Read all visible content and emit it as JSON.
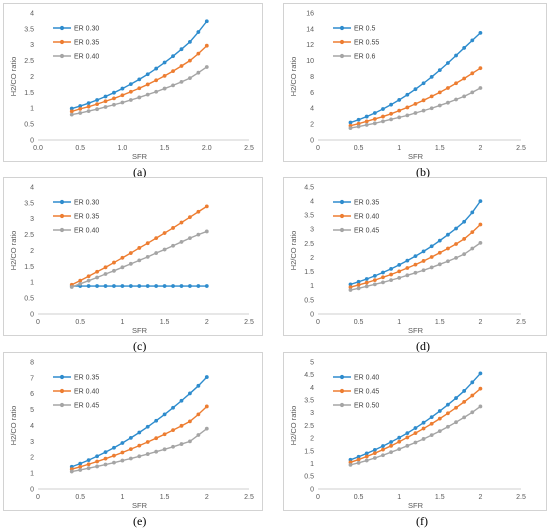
{
  "chart_data": [
    {
      "type": "line",
      "panel_label": "(a)",
      "xlabel": "SFR",
      "ylabel": "H2/CO ratio",
      "xlim": [
        0,
        2.5
      ],
      "ylim": [
        0,
        4
      ],
      "xticks": [
        "0.0",
        "0.5",
        "1.0",
        "1.5",
        "2.0",
        "2.5"
      ],
      "yticks": [
        "0",
        "0.5",
        "1",
        "1.5",
        "2",
        "2.5",
        "3",
        "3.5",
        "4"
      ],
      "legend": "top-left",
      "grid": false,
      "x": [
        0.4,
        0.5,
        0.6,
        0.7,
        0.8,
        0.9,
        1.0,
        1.1,
        1.2,
        1.3,
        1.4,
        1.5,
        1.6,
        1.7,
        1.8,
        1.9,
        2.0
      ],
      "series": [
        {
          "name": "ER 0.30",
          "color": "#2e8ccd",
          "values": [
            0.99,
            1.07,
            1.16,
            1.26,
            1.37,
            1.49,
            1.62,
            1.76,
            1.91,
            2.07,
            2.25,
            2.44,
            2.64,
            2.86,
            3.09,
            3.4,
            3.74
          ]
        },
        {
          "name": "ER 0.35",
          "color": "#ed7d31",
          "values": [
            0.9,
            0.98,
            1.05,
            1.13,
            1.22,
            1.31,
            1.41,
            1.52,
            1.63,
            1.75,
            1.88,
            2.02,
            2.17,
            2.33,
            2.5,
            2.72,
            2.97
          ]
        },
        {
          "name": "ER 0.40",
          "color": "#a5a5a5",
          "values": [
            0.8,
            0.85,
            0.91,
            0.97,
            1.04,
            1.11,
            1.18,
            1.26,
            1.34,
            1.43,
            1.52,
            1.62,
            1.72,
            1.83,
            1.95,
            2.12,
            2.3
          ]
        }
      ]
    },
    {
      "type": "line",
      "panel_label": "(b)",
      "xlabel": "SFR",
      "ylabel": "H2/CO ratio",
      "xlim": [
        0,
        2.5
      ],
      "ylim": [
        0,
        16
      ],
      "xticks": [
        "0",
        "0.5",
        "1",
        "1.5",
        "2",
        "2.5"
      ],
      "yticks": [
        "0",
        "2",
        "4",
        "6",
        "8",
        "10",
        "12",
        "14",
        "16"
      ],
      "legend": "top-left",
      "grid": false,
      "x": [
        0.4,
        0.5,
        0.6,
        0.7,
        0.8,
        0.9,
        1.0,
        1.1,
        1.2,
        1.3,
        1.4,
        1.5,
        1.6,
        1.7,
        1.8,
        1.9,
        2.0
      ],
      "series": [
        {
          "name": "ER 0.5",
          "color": "#2e8ccd",
          "values": [
            2.2,
            2.55,
            2.95,
            3.4,
            3.9,
            4.45,
            5.05,
            5.7,
            6.4,
            7.15,
            7.95,
            8.8,
            9.7,
            10.65,
            11.6,
            12.55,
            13.5
          ]
        },
        {
          "name": "ER 0.55",
          "color": "#ed7d31",
          "values": [
            1.8,
            2.05,
            2.35,
            2.65,
            2.95,
            3.3,
            3.7,
            4.1,
            4.55,
            5.0,
            5.5,
            6.0,
            6.55,
            7.15,
            7.75,
            8.4,
            9.05
          ]
        },
        {
          "name": "ER 0.6",
          "color": "#a5a5a5",
          "values": [
            1.5,
            1.7,
            1.9,
            2.1,
            2.35,
            2.6,
            2.85,
            3.1,
            3.4,
            3.7,
            4.0,
            4.35,
            4.7,
            5.1,
            5.5,
            6.0,
            6.55
          ]
        }
      ]
    },
    {
      "type": "line",
      "panel_label": "(c)",
      "xlabel": "SFR",
      "ylabel": "H2/CO ratio",
      "xlim": [
        0,
        2.5
      ],
      "ylim": [
        0,
        4
      ],
      "xticks": [
        "0",
        "0.5",
        "1",
        "1.5",
        "2",
        "2.5"
      ],
      "yticks": [
        "0",
        "0.5",
        "1",
        "1.5",
        "2",
        "2.5",
        "3",
        "3.5",
        "4"
      ],
      "legend": "top-left",
      "grid": false,
      "x": [
        0.4,
        0.5,
        0.6,
        0.7,
        0.8,
        0.9,
        1.0,
        1.1,
        1.2,
        1.3,
        1.4,
        1.5,
        1.6,
        1.7,
        1.8,
        1.9,
        2.0
      ],
      "series": [
        {
          "name": "ER 0.30",
          "color": "#2e8ccd",
          "values": [
            0.88,
            0.88,
            0.88,
            0.88,
            0.88,
            0.88,
            0.88,
            0.88,
            0.88,
            0.88,
            0.88,
            0.88,
            0.88,
            0.88,
            0.88,
            0.88,
            0.88
          ]
        },
        {
          "name": "ER 0.35",
          "color": "#ed7d31",
          "values": [
            0.92,
            1.05,
            1.19,
            1.33,
            1.47,
            1.62,
            1.77,
            1.92,
            2.08,
            2.23,
            2.39,
            2.55,
            2.71,
            2.88,
            3.05,
            3.22,
            3.39
          ]
        },
        {
          "name": "ER 0.40",
          "color": "#a5a5a5",
          "values": [
            0.85,
            0.95,
            1.05,
            1.15,
            1.26,
            1.36,
            1.47,
            1.58,
            1.69,
            1.8,
            1.92,
            2.03,
            2.15,
            2.27,
            2.39,
            2.5,
            2.6
          ]
        }
      ]
    },
    {
      "type": "line",
      "panel_label": "(d)",
      "xlabel": "SFR",
      "ylabel": "H2/CO ratio",
      "xlim": [
        0,
        2.5
      ],
      "ylim": [
        0,
        4.5
      ],
      "xticks": [
        "0",
        "0.5",
        "1",
        "1.5",
        "2",
        "2.5"
      ],
      "yticks": [
        "0",
        "0.5",
        "1",
        "1.5",
        "2",
        "2.5",
        "3",
        "3.5",
        "4",
        "4.5"
      ],
      "legend": "top-left",
      "grid": false,
      "x": [
        0.4,
        0.5,
        0.6,
        0.7,
        0.8,
        0.9,
        1.0,
        1.1,
        1.2,
        1.3,
        1.4,
        1.5,
        1.6,
        1.7,
        1.8,
        1.9,
        2.0
      ],
      "series": [
        {
          "name": "ER 0.35",
          "color": "#2e8ccd",
          "values": [
            1.05,
            1.14,
            1.24,
            1.35,
            1.47,
            1.6,
            1.74,
            1.89,
            2.05,
            2.22,
            2.4,
            2.6,
            2.81,
            3.03,
            3.27,
            3.6,
            4.0
          ]
        },
        {
          "name": "ER 0.40",
          "color": "#ed7d31",
          "values": [
            0.95,
            1.03,
            1.11,
            1.2,
            1.3,
            1.4,
            1.51,
            1.63,
            1.75,
            1.88,
            2.02,
            2.17,
            2.32,
            2.48,
            2.66,
            2.9,
            3.17
          ]
        },
        {
          "name": "ER 0.45",
          "color": "#a5a5a5",
          "values": [
            0.85,
            0.91,
            0.98,
            1.05,
            1.12,
            1.2,
            1.28,
            1.37,
            1.46,
            1.55,
            1.65,
            1.76,
            1.87,
            1.99,
            2.12,
            2.32,
            2.52
          ]
        }
      ]
    },
    {
      "type": "line",
      "panel_label": "(e)",
      "xlabel": "SFR",
      "ylabel": "H2/CO ratio",
      "xlim": [
        0,
        2.5
      ],
      "ylim": [
        0,
        8
      ],
      "xticks": [
        "0",
        "0.5",
        "1",
        "1.5",
        "2",
        "2.5"
      ],
      "yticks": [
        "0",
        "1",
        "2",
        "3",
        "4",
        "5",
        "6",
        "7",
        "8"
      ],
      "legend": "top-left",
      "grid": false,
      "x": [
        0.4,
        0.5,
        0.6,
        0.7,
        0.8,
        0.9,
        1.0,
        1.1,
        1.2,
        1.3,
        1.4,
        1.5,
        1.6,
        1.7,
        1.8,
        1.9,
        2.0
      ],
      "series": [
        {
          "name": "ER 0.35",
          "color": "#2e8ccd",
          "values": [
            1.4,
            1.6,
            1.82,
            2.06,
            2.32,
            2.6,
            2.9,
            3.22,
            3.56,
            3.92,
            4.3,
            4.7,
            5.12,
            5.56,
            6.02,
            6.5,
            7.05
          ]
        },
        {
          "name": "ER 0.40",
          "color": "#ed7d31",
          "values": [
            1.25,
            1.4,
            1.56,
            1.73,
            1.91,
            2.1,
            2.3,
            2.51,
            2.73,
            2.96,
            3.2,
            3.45,
            3.71,
            3.98,
            4.26,
            4.7,
            5.2
          ]
        },
        {
          "name": "ER 0.45",
          "color": "#a5a5a5",
          "values": [
            1.1,
            1.2,
            1.31,
            1.42,
            1.54,
            1.66,
            1.79,
            1.92,
            2.06,
            2.2,
            2.35,
            2.5,
            2.66,
            2.83,
            3.0,
            3.4,
            3.8
          ]
        }
      ]
    },
    {
      "type": "line",
      "panel_label": "(f)",
      "xlabel": "SFR",
      "ylabel": "H2/CO ratio",
      "xlim": [
        0,
        2.5
      ],
      "ylim": [
        0,
        5
      ],
      "xticks": [
        "0",
        "0.5",
        "1",
        "1.5",
        "2",
        "2.5"
      ],
      "yticks": [
        "0",
        "0.5",
        "1",
        "1.5",
        "2",
        "2.5",
        "3",
        "3.5",
        "4",
        "4.5",
        "5"
      ],
      "legend": "top-left",
      "grid": false,
      "x": [
        0.4,
        0.5,
        0.6,
        0.7,
        0.8,
        0.9,
        1.0,
        1.1,
        1.2,
        1.3,
        1.4,
        1.5,
        1.6,
        1.7,
        1.8,
        1.9,
        2.0
      ],
      "series": [
        {
          "name": "ER 0.40",
          "color": "#2e8ccd",
          "values": [
            1.15,
            1.27,
            1.4,
            1.54,
            1.69,
            1.85,
            2.02,
            2.2,
            2.4,
            2.61,
            2.83,
            3.07,
            3.32,
            3.58,
            3.86,
            4.2,
            4.55
          ]
        },
        {
          "name": "ER 0.45",
          "color": "#ed7d31",
          "values": [
            1.05,
            1.16,
            1.28,
            1.41,
            1.55,
            1.7,
            1.86,
            2.03,
            2.2,
            2.38,
            2.57,
            2.77,
            2.98,
            3.2,
            3.43,
            3.68,
            3.95
          ]
        },
        {
          "name": "ER 0.50",
          "color": "#a5a5a5",
          "values": [
            0.95,
            1.03,
            1.12,
            1.22,
            1.33,
            1.45,
            1.57,
            1.7,
            1.83,
            1.97,
            2.12,
            2.28,
            2.45,
            2.63,
            2.82,
            3.02,
            3.25
          ]
        }
      ]
    }
  ]
}
